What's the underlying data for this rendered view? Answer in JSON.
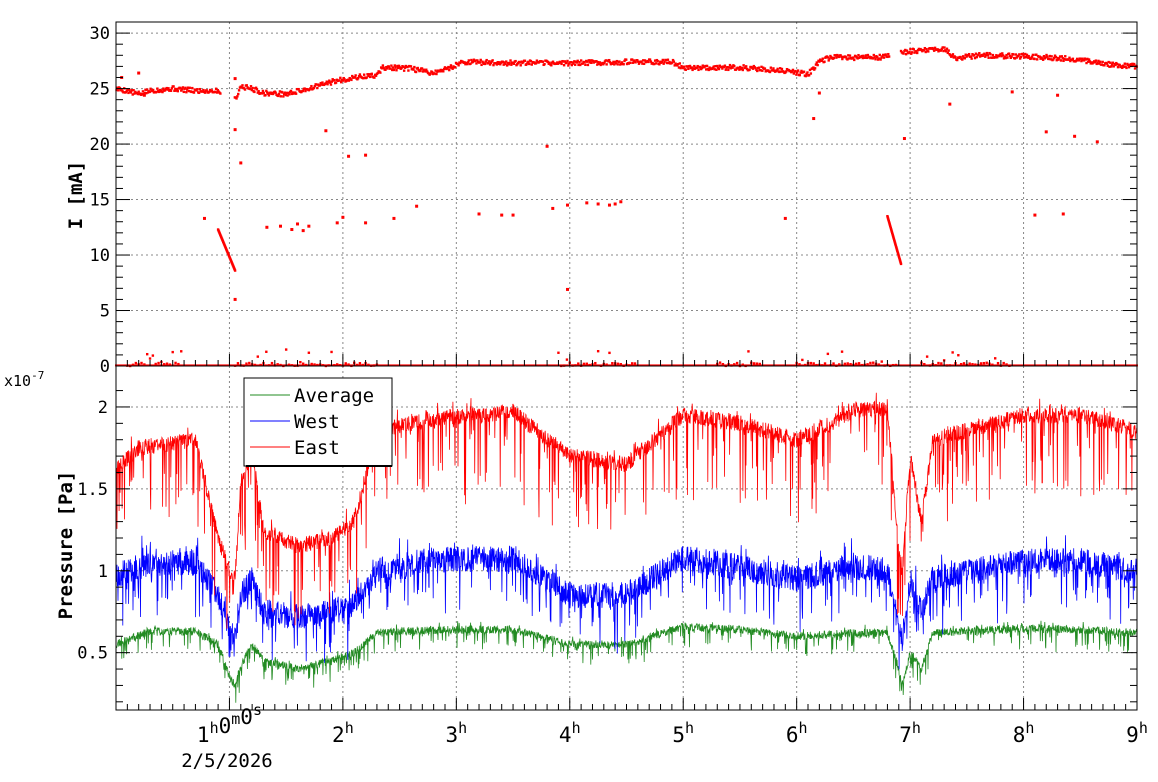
{
  "chart_data": [
    {
      "type": "scatter",
      "ylabel": "I [mA]",
      "ylim": [
        0,
        31
      ],
      "yticks": [
        0,
        5,
        10,
        15,
        20,
        25,
        30
      ],
      "grid": true,
      "xlim": [
        0,
        9
      ],
      "series": [
        {
          "color": "#ff0000",
          "baseline": [
            [
              0.0,
              25.0
            ],
            [
              0.1,
              24.8
            ],
            [
              0.2,
              24.5
            ],
            [
              0.3,
              24.8
            ],
            [
              0.5,
              25.0
            ],
            [
              0.7,
              24.8
            ],
            [
              0.9,
              24.8
            ],
            [
              1.05,
              24.0
            ],
            [
              1.1,
              25.2
            ],
            [
              1.2,
              25.0
            ],
            [
              1.3,
              24.6
            ],
            [
              1.5,
              24.5
            ],
            [
              1.7,
              25.0
            ],
            [
              1.9,
              25.6
            ],
            [
              2.1,
              26.0
            ],
            [
              2.3,
              26.2
            ],
            [
              2.35,
              26.9
            ],
            [
              2.6,
              26.8
            ],
            [
              2.8,
              26.4
            ],
            [
              2.95,
              26.9
            ],
            [
              3.05,
              27.4
            ],
            [
              3.5,
              27.3
            ],
            [
              4.0,
              27.3
            ],
            [
              4.5,
              27.4
            ],
            [
              4.9,
              27.4
            ],
            [
              5.0,
              26.9
            ],
            [
              5.5,
              26.9
            ],
            [
              5.9,
              26.6
            ],
            [
              6.1,
              26.3
            ],
            [
              6.2,
              27.4
            ],
            [
              6.3,
              27.8
            ],
            [
              6.7,
              27.8
            ],
            [
              6.8,
              27.9
            ],
            [
              6.95,
              28.3
            ],
            [
              7.3,
              28.6
            ],
            [
              7.4,
              27.7
            ],
            [
              7.6,
              28.0
            ],
            [
              8.0,
              27.9
            ],
            [
              8.4,
              27.7
            ],
            [
              8.8,
              27.1
            ],
            [
              9.0,
              27.0
            ]
          ],
          "decay_segments": [
            {
              "x": [
                0.9,
                1.05
              ],
              "y": [
                12.3,
                8.6
              ]
            },
            {
              "x": [
                6.8,
                6.92
              ],
              "y": [
                13.5,
                9.2
              ]
            }
          ],
          "outliers": [
            [
              0.05,
              26.0
            ],
            [
              0.2,
              26.4
            ],
            [
              0.25,
              24.4
            ],
            [
              0.78,
              13.3
            ],
            [
              1.05,
              25.9
            ],
            [
              1.05,
              21.3
            ],
            [
              1.05,
              6.0
            ],
            [
              1.1,
              18.3
            ],
            [
              1.33,
              12.5
            ],
            [
              1.45,
              12.6
            ],
            [
              1.55,
              12.3
            ],
            [
              1.6,
              12.8
            ],
            [
              1.65,
              12.2
            ],
            [
              1.7,
              12.6
            ],
            [
              1.85,
              21.2
            ],
            [
              1.95,
              12.9
            ],
            [
              2.0,
              13.4
            ],
            [
              2.05,
              18.9
            ],
            [
              2.2,
              19.0
            ],
            [
              2.2,
              12.9
            ],
            [
              2.45,
              13.3
            ],
            [
              2.65,
              14.4
            ],
            [
              3.2,
              13.7
            ],
            [
              3.4,
              13.6
            ],
            [
              3.5,
              13.6
            ],
            [
              3.8,
              19.8
            ],
            [
              3.85,
              14.2
            ],
            [
              3.98,
              14.5
            ],
            [
              3.98,
              6.9
            ],
            [
              4.15,
              14.7
            ],
            [
              4.25,
              14.6
            ],
            [
              4.35,
              14.5
            ],
            [
              4.4,
              14.6
            ],
            [
              4.45,
              14.8
            ],
            [
              5.9,
              13.3
            ],
            [
              6.15,
              22.3
            ],
            [
              6.2,
              24.6
            ],
            [
              6.95,
              20.5
            ],
            [
              7.35,
              23.6
            ],
            [
              7.9,
              24.7
            ],
            [
              8.1,
              13.6
            ],
            [
              8.2,
              21.1
            ],
            [
              8.3,
              24.4
            ],
            [
              8.35,
              13.7
            ],
            [
              8.45,
              20.7
            ],
            [
              8.65,
              20.2
            ]
          ],
          "zero_clusters": [
            [
              0.1,
              0.6
            ],
            [
              1.05,
              2.3
            ],
            [
              3.9,
              4.6
            ],
            [
              5.3,
              5.7
            ],
            [
              6.0,
              6.9
            ],
            [
              7.1,
              7.9
            ]
          ]
        }
      ]
    },
    {
      "type": "line",
      "ylabel": "Pressure [Pa]",
      "y_multiplier": "x10",
      "y_exponent": "-7",
      "ylim": [
        0.15,
        2.25
      ],
      "yticks": [
        0.5,
        1,
        1.5,
        2
      ],
      "ytick_labels": [
        "0.5",
        "1",
        "1.5",
        "2"
      ],
      "grid": true,
      "legend_position": "top-left",
      "x_time_labels": [
        "1h0m0s",
        "2h",
        "3h",
        "4h",
        "5h",
        "6h",
        "7h",
        "8h",
        "9h"
      ],
      "x_time_values": [
        1,
        2,
        3,
        4,
        5,
        6,
        7,
        8,
        9
      ],
      "x_start_date": "2/5/2026",
      "xlim": [
        0,
        9
      ],
      "series": [
        {
          "name": "Average",
          "color": "#228b22",
          "seed": 11,
          "noise": 0.025,
          "spike_depth": 0.12,
          "baseline": [
            [
              0.0,
              0.55
            ],
            [
              0.3,
              0.63
            ],
            [
              0.7,
              0.63
            ],
            [
              0.9,
              0.55
            ],
            [
              1.0,
              0.35
            ],
            [
              1.05,
              0.3
            ],
            [
              1.1,
              0.42
            ],
            [
              1.2,
              0.55
            ],
            [
              1.3,
              0.45
            ],
            [
              1.6,
              0.4
            ],
            [
              1.9,
              0.45
            ],
            [
              2.1,
              0.5
            ],
            [
              2.3,
              0.62
            ],
            [
              2.8,
              0.64
            ],
            [
              3.5,
              0.64
            ],
            [
              4.0,
              0.55
            ],
            [
              4.5,
              0.55
            ],
            [
              5.0,
              0.66
            ],
            [
              5.5,
              0.64
            ],
            [
              6.0,
              0.6
            ],
            [
              6.5,
              0.62
            ],
            [
              6.8,
              0.62
            ],
            [
              6.9,
              0.4
            ],
            [
              6.93,
              0.3
            ],
            [
              7.0,
              0.5
            ],
            [
              7.1,
              0.4
            ],
            [
              7.2,
              0.62
            ],
            [
              8.0,
              0.65
            ],
            [
              8.5,
              0.64
            ],
            [
              9.0,
              0.62
            ]
          ]
        },
        {
          "name": "West",
          "color": "#0000ff",
          "seed": 23,
          "noise": 0.08,
          "spike_depth": 0.28,
          "baseline": [
            [
              0.0,
              0.97
            ],
            [
              0.3,
              1.05
            ],
            [
              0.7,
              1.05
            ],
            [
              0.9,
              0.85
            ],
            [
              1.0,
              0.65
            ],
            [
              1.05,
              0.58
            ],
            [
              1.1,
              0.85
            ],
            [
              1.2,
              0.95
            ],
            [
              1.3,
              0.75
            ],
            [
              1.6,
              0.72
            ],
            [
              1.9,
              0.75
            ],
            [
              2.1,
              0.8
            ],
            [
              2.3,
              1.0
            ],
            [
              2.8,
              1.07
            ],
            [
              3.5,
              1.07
            ],
            [
              4.0,
              0.85
            ],
            [
              4.5,
              0.85
            ],
            [
              5.0,
              1.08
            ],
            [
              5.5,
              1.02
            ],
            [
              6.0,
              0.95
            ],
            [
              6.5,
              1.03
            ],
            [
              6.8,
              1.0
            ],
            [
              6.9,
              0.65
            ],
            [
              6.93,
              0.58
            ],
            [
              7.0,
              0.95
            ],
            [
              7.1,
              0.75
            ],
            [
              7.2,
              0.95
            ],
            [
              8.0,
              1.06
            ],
            [
              8.5,
              1.06
            ],
            [
              9.0,
              1.0
            ]
          ]
        },
        {
          "name": "East",
          "color": "#ff0000",
          "seed": 37,
          "noise": 0.05,
          "spike_depth": 0.5,
          "baseline": [
            [
              0.0,
              1.62
            ],
            [
              0.2,
              1.75
            ],
            [
              0.7,
              1.8
            ],
            [
              0.9,
              1.2
            ],
            [
              1.0,
              1.0
            ],
            [
              1.05,
              0.95
            ],
            [
              1.1,
              1.55
            ],
            [
              1.2,
              1.73
            ],
            [
              1.3,
              1.25
            ],
            [
              1.6,
              1.15
            ],
            [
              1.9,
              1.2
            ],
            [
              2.1,
              1.3
            ],
            [
              2.3,
              1.85
            ],
            [
              2.8,
              1.93
            ],
            [
              3.5,
              1.97
            ],
            [
              4.0,
              1.7
            ],
            [
              4.5,
              1.65
            ],
            [
              5.0,
              1.95
            ],
            [
              5.5,
              1.9
            ],
            [
              6.0,
              1.8
            ],
            [
              6.5,
              1.97
            ],
            [
              6.8,
              2.0
            ],
            [
              6.9,
              1.1
            ],
            [
              6.93,
              0.98
            ],
            [
              7.0,
              1.7
            ],
            [
              7.1,
              1.3
            ],
            [
              7.2,
              1.8
            ],
            [
              8.0,
              1.95
            ],
            [
              8.5,
              1.95
            ],
            [
              9.0,
              1.85
            ]
          ]
        }
      ]
    }
  ]
}
